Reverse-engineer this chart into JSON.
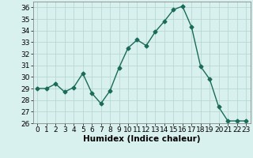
{
  "x": [
    0,
    1,
    2,
    3,
    4,
    5,
    6,
    7,
    8,
    9,
    10,
    11,
    12,
    13,
    14,
    15,
    16,
    17,
    18,
    19,
    20,
    21,
    22,
    23
  ],
  "y": [
    29.0,
    29.0,
    29.4,
    28.7,
    29.1,
    30.3,
    28.6,
    27.7,
    28.8,
    30.8,
    32.5,
    33.2,
    32.7,
    33.9,
    34.8,
    35.8,
    36.1,
    34.3,
    30.9,
    29.8,
    27.4,
    26.2,
    26.2,
    26.2
  ],
  "line_color": "#1a6b5a",
  "marker": "D",
  "marker_size": 2.5,
  "bg_color": "#d8f0ee",
  "grid_color": "#b8d8d4",
  "xlabel": "Humidex (Indice chaleur)",
  "ylabel": "",
  "xlim": [
    -0.5,
    23.5
  ],
  "ylim": [
    26,
    36.5
  ],
  "yticks": [
    26,
    27,
    28,
    29,
    30,
    31,
    32,
    33,
    34,
    35,
    36
  ],
  "xticks": [
    0,
    1,
    2,
    3,
    4,
    5,
    6,
    7,
    8,
    9,
    10,
    11,
    12,
    13,
    14,
    15,
    16,
    17,
    18,
    19,
    20,
    21,
    22,
    23
  ],
  "label_fontsize": 7.5,
  "tick_fontsize": 6.5
}
